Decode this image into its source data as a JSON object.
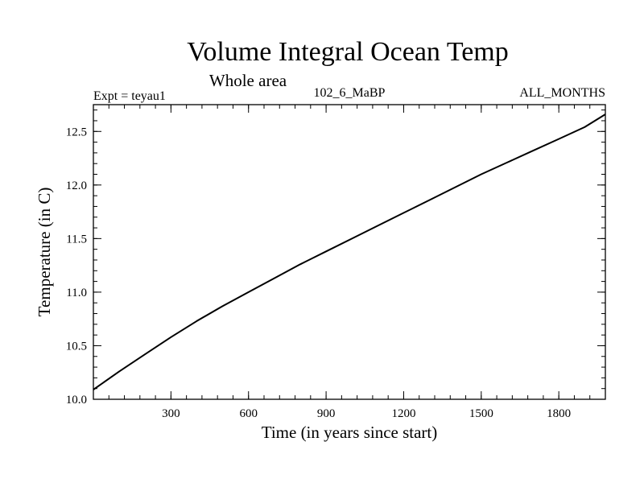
{
  "chart_data": {
    "type": "line",
    "title": "Volume Integral Ocean Temp",
    "subtitle": "Whole area",
    "header_left": "Expt = teyau1",
    "header_center": "102_6_MaBP",
    "header_right": "ALL_MONTHS",
    "xlabel": "Time (in years since start)",
    "ylabel": "Temperature (in C)",
    "xlim": [
      0,
      1980
    ],
    "ylim": [
      10.0,
      12.75
    ],
    "x_ticks": [
      300,
      600,
      900,
      1200,
      1500,
      1800
    ],
    "x_tick_labels": [
      "300",
      "600",
      "900",
      "1200",
      "1500",
      "1800"
    ],
    "y_ticks": [
      10.0,
      10.5,
      11.0,
      11.5,
      12.0,
      12.5
    ],
    "y_tick_labels": [
      "10.0",
      "10.5",
      "11.0",
      "11.5",
      "12.0",
      "12.5"
    ],
    "x_minor_step": 60,
    "y_minor_step": 0.1,
    "grid": false,
    "series": [
      {
        "name": "Volume Integral Ocean Temp",
        "x": [
          0,
          100,
          200,
          300,
          400,
          500,
          600,
          700,
          800,
          900,
          1000,
          1100,
          1200,
          1300,
          1400,
          1500,
          1600,
          1700,
          1800,
          1900,
          1980
        ],
        "y": [
          10.09,
          10.26,
          10.42,
          10.58,
          10.73,
          10.87,
          11.0,
          11.13,
          11.26,
          11.38,
          11.5,
          11.62,
          11.74,
          11.86,
          11.98,
          12.1,
          12.21,
          12.32,
          12.43,
          12.54,
          12.66
        ]
      }
    ]
  }
}
